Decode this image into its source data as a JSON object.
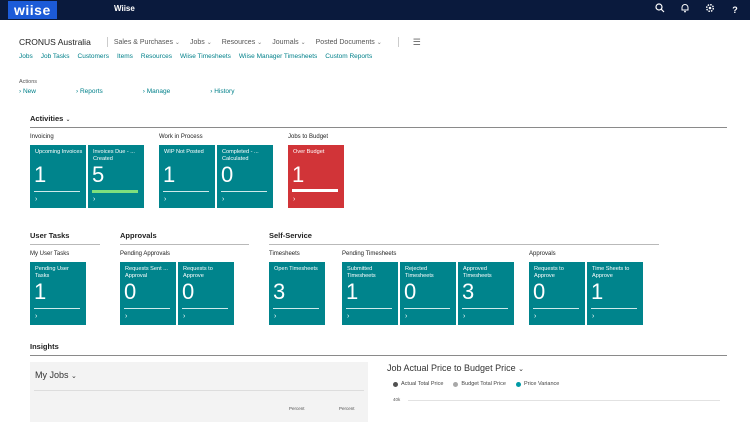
{
  "topbar": {
    "logo": "wiise",
    "app_name": "Wiise",
    "icons": [
      "search-icon",
      "bell-icon",
      "gear-icon",
      "help-icon"
    ]
  },
  "nav": {
    "company": "CRONUS Australia",
    "menus": [
      "Sales & Purchases",
      "Jobs",
      "Resources",
      "Journals",
      "Posted Documents"
    ],
    "links": [
      "Jobs",
      "Job Tasks",
      "Customers",
      "Items",
      "Resources",
      "Wiise Timesheets",
      "Wiise Manager Timesheets",
      "Custom Reports"
    ]
  },
  "actions": {
    "label": "Actions",
    "items": [
      "New",
      "Reports",
      "Manage",
      "History"
    ]
  },
  "activities": {
    "title": "Activities",
    "groups": [
      {
        "label": "Invoicing",
        "tiles": [
          {
            "label": "Upcoming Invoices",
            "value": "1"
          },
          {
            "label": "Invoices Due - ... Created",
            "value": "5"
          }
        ]
      },
      {
        "label": "Work in Process",
        "tiles": [
          {
            "label": "WIP Not Posted",
            "value": "1"
          },
          {
            "label": "Completed - ... Calculated",
            "value": "0"
          }
        ]
      },
      {
        "label": "Jobs to Budget",
        "tiles": [
          {
            "label": "Over Budget",
            "value": "1"
          }
        ]
      }
    ]
  },
  "user_tasks": {
    "title": "User Tasks",
    "group": "My User Tasks",
    "tiles": [
      {
        "label": "Pending User Tasks",
        "value": "1"
      }
    ]
  },
  "approvals": {
    "title": "Approvals",
    "group": "Pending Approvals",
    "tiles": [
      {
        "label": "Requests Sent ... Approval",
        "value": "0"
      },
      {
        "label": "Requests to Approve",
        "value": "0"
      }
    ]
  },
  "self_service": {
    "title": "Self-Service",
    "groups": [
      {
        "label": "Timesheets",
        "tiles": [
          {
            "label": "Open Timesheets",
            "value": "3"
          }
        ]
      },
      {
        "label": "Pending Timesheets",
        "tiles": [
          {
            "label": "Submitted Timesheets",
            "value": "1"
          },
          {
            "label": "Rejected Timesheets",
            "value": "0"
          },
          {
            "label": "Approved Timesheets",
            "value": "3"
          }
        ]
      },
      {
        "label": "Approvals",
        "tiles": [
          {
            "label": "Requests to Approve",
            "value": "0"
          },
          {
            "label": "Time Sheets to Approve",
            "value": "1"
          }
        ]
      }
    ]
  },
  "insights": {
    "title": "Insights",
    "my_jobs": "My Jobs",
    "columns": [
      "Percent",
      "Percent"
    ],
    "chart": {
      "title": "Job Actual Price to Budget Price",
      "legend": [
        {
          "name": "Actual Total Price",
          "color": "#505050"
        },
        {
          "name": "Budget Total Price",
          "color": "#a8a8a8"
        },
        {
          "name": "Price Variance",
          "color": "#009aa6"
        }
      ],
      "y_tick": "40k"
    }
  }
}
